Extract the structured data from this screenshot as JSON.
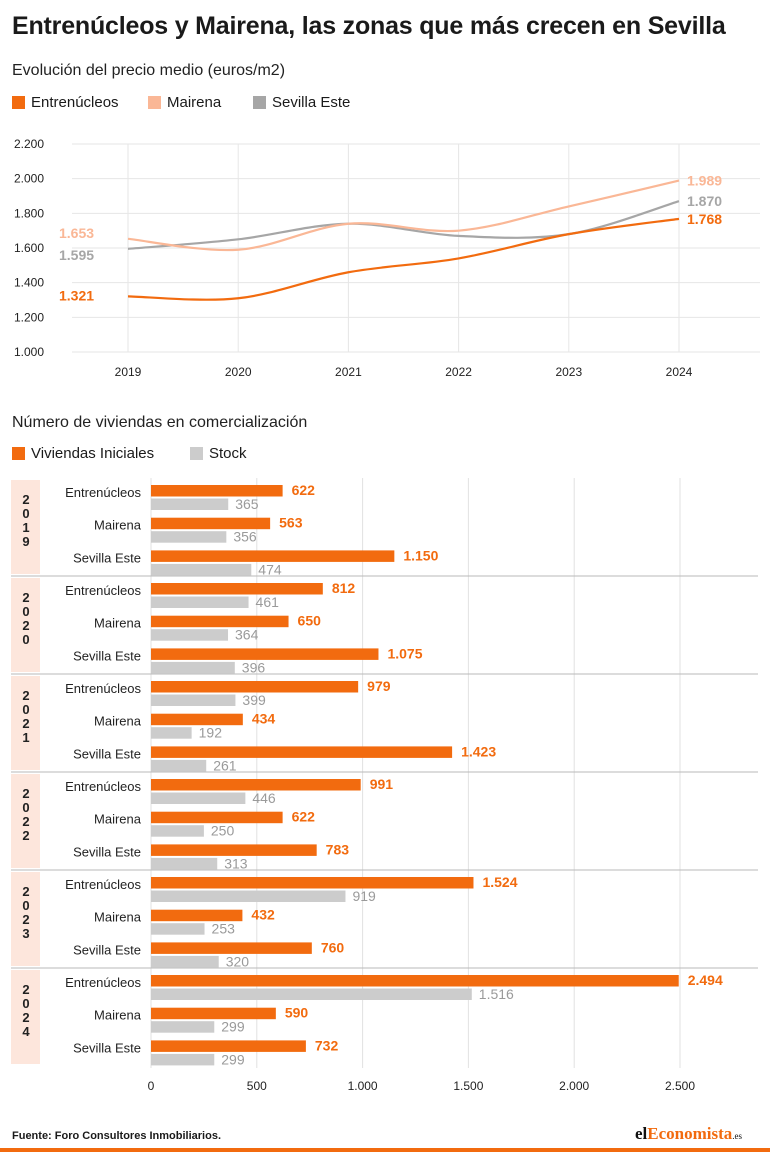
{
  "title": "Entrenúcleos y Mairena, las zonas que más crecen en Sevilla",
  "source": "Fuente:  Foro Consultores Inmobiliarios.",
  "logo": {
    "pre": "el",
    "accent": "Economista",
    "suffix": ".es"
  },
  "colors": {
    "accent": "#f26b0f",
    "light_orange": "#fab796",
    "gray": "#a6a6a6",
    "light_gray": "#cccccc",
    "band": "#fde6dc"
  },
  "chart_data": [
    {
      "type": "line",
      "title": "Evolución del precio medio (euros/m2)",
      "x": [
        "2019",
        "2020",
        "2021",
        "2022",
        "2023",
        "2024"
      ],
      "ylim": [
        1000,
        2200
      ],
      "yticks": [
        "1.000",
        "1.200",
        "1.400",
        "1.600",
        "1.800",
        "2.000",
        "2.200"
      ],
      "ytick_values": [
        1000,
        1200,
        1400,
        1600,
        1800,
        2000,
        2200
      ],
      "grid": true,
      "legend_position": "top-left",
      "series": [
        {
          "name": "Entrenúcleos",
          "color": "#f26b0f",
          "values": [
            1321,
            1310,
            1460,
            1540,
            1680,
            1768
          ],
          "start_label": "1.321",
          "end_label": "1.768"
        },
        {
          "name": "Mairena",
          "color": "#fab796",
          "values": [
            1653,
            1590,
            1740,
            1700,
            1840,
            1989
          ],
          "start_label": "1.653",
          "end_label": "1.989"
        },
        {
          "name": "Sevilla Este",
          "color": "#a6a6a6",
          "values": [
            1595,
            1650,
            1740,
            1670,
            1680,
            1870
          ],
          "start_label": "1.595",
          "end_label": "1.870"
        }
      ]
    },
    {
      "type": "bar",
      "orientation": "horizontal",
      "title": "Número de viviendas en comercialización",
      "xlim": [
        0,
        2700
      ],
      "xticks": [
        "0",
        "500",
        "1.000",
        "1.500",
        "2.000",
        "2.500"
      ],
      "xtick_values": [
        0,
        500,
        1000,
        1500,
        2000,
        2500
      ],
      "grid": true,
      "legend_position": "top-left",
      "series_names": [
        "Viviendas Iniciales",
        "Stock"
      ],
      "series_colors": [
        "#f26b0f",
        "#cccccc"
      ],
      "groups": [
        {
          "year": "2019",
          "rows": [
            {
              "zone": "Entrenúcleos",
              "iniciales": 622,
              "iniciales_label": "622",
              "stock": 365,
              "stock_label": "365"
            },
            {
              "zone": "Mairena",
              "iniciales": 563,
              "iniciales_label": "563",
              "stock": 356,
              "stock_label": "356"
            },
            {
              "zone": "Sevilla Este",
              "iniciales": 1150,
              "iniciales_label": "1.150",
              "stock": 474,
              "stock_label": "474"
            }
          ]
        },
        {
          "year": "2020",
          "rows": [
            {
              "zone": "Entrenúcleos",
              "iniciales": 812,
              "iniciales_label": "812",
              "stock": 461,
              "stock_label": "461"
            },
            {
              "zone": "Mairena",
              "iniciales": 650,
              "iniciales_label": "650",
              "stock": 364,
              "stock_label": "364"
            },
            {
              "zone": "Sevilla Este",
              "iniciales": 1075,
              "iniciales_label": "1.075",
              "stock": 396,
              "stock_label": "396"
            }
          ]
        },
        {
          "year": "2021",
          "rows": [
            {
              "zone": "Entrenúcleos",
              "iniciales": 979,
              "iniciales_label": "979",
              "stock": 399,
              "stock_label": "399"
            },
            {
              "zone": "Mairena",
              "iniciales": 434,
              "iniciales_label": "434",
              "stock": 192,
              "stock_label": "192"
            },
            {
              "zone": "Sevilla Este",
              "iniciales": 1423,
              "iniciales_label": "1.423",
              "stock": 261,
              "stock_label": "261"
            }
          ]
        },
        {
          "year": "2022",
          "rows": [
            {
              "zone": "Entrenúcleos",
              "iniciales": 991,
              "iniciales_label": "991",
              "stock": 446,
              "stock_label": "446"
            },
            {
              "zone": "Mairena",
              "iniciales": 622,
              "iniciales_label": "622",
              "stock": 250,
              "stock_label": "250"
            },
            {
              "zone": "Sevilla Este",
              "iniciales": 783,
              "iniciales_label": "783",
              "stock": 313,
              "stock_label": "313"
            }
          ]
        },
        {
          "year": "2023",
          "rows": [
            {
              "zone": "Entrenúcleos",
              "iniciales": 1524,
              "iniciales_label": "1.524",
              "stock": 919,
              "stock_label": "919"
            },
            {
              "zone": "Mairena",
              "iniciales": 432,
              "iniciales_label": "432",
              "stock": 253,
              "stock_label": "253"
            },
            {
              "zone": "Sevilla Este",
              "iniciales": 760,
              "iniciales_label": "760",
              "stock": 320,
              "stock_label": "320"
            }
          ]
        },
        {
          "year": "2024",
          "rows": [
            {
              "zone": "Entrenúcleos",
              "iniciales": 2494,
              "iniciales_label": "2.494",
              "stock": 1516,
              "stock_label": "1.516"
            },
            {
              "zone": "Mairena",
              "iniciales": 590,
              "iniciales_label": "590",
              "stock": 299,
              "stock_label": "299"
            },
            {
              "zone": "Sevilla Este",
              "iniciales": 732,
              "iniciales_label": "732",
              "stock": 299,
              "stock_label": "299"
            }
          ]
        }
      ]
    }
  ]
}
